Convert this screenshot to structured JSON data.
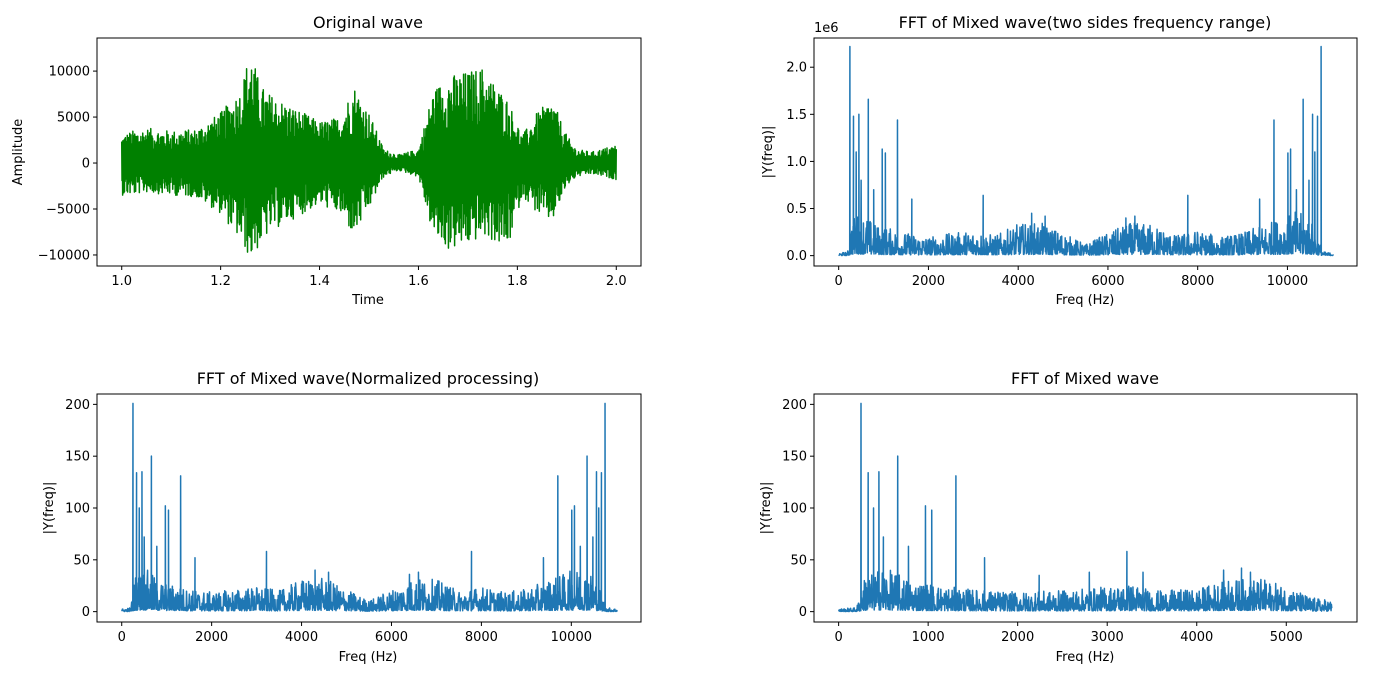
{
  "chart_data": [
    {
      "type": "line",
      "title": "Original wave",
      "xlabel": "Time",
      "ylabel": "Amplitude",
      "xlim": [
        0.95,
        2.05
      ],
      "ylim": [
        -11200,
        13600
      ],
      "xticks": [
        1.0,
        1.2,
        1.4,
        1.6,
        1.8,
        2.0
      ],
      "xticklabels": [
        "1.0",
        "1.2",
        "1.4",
        "1.6",
        "1.8",
        "2.0"
      ],
      "yticks": [
        -10000,
        -5000,
        0,
        5000,
        10000
      ],
      "yticklabels": [
        "−10000",
        "−5000",
        "0",
        "5000",
        "10000"
      ],
      "color": "#008000",
      "envelope": {
        "x": [
          1.0,
          1.02,
          1.05,
          1.1,
          1.15,
          1.2,
          1.24,
          1.26,
          1.28,
          1.3,
          1.35,
          1.4,
          1.44,
          1.47,
          1.5,
          1.53,
          1.56,
          1.6,
          1.63,
          1.66,
          1.7,
          1.73,
          1.75,
          1.78,
          1.81,
          1.84,
          1.87,
          1.9,
          1.92,
          1.95,
          2.0
        ],
        "upper": [
          3000,
          3500,
          3800,
          3500,
          3700,
          5500,
          8000,
          12500,
          8500,
          7500,
          6000,
          4500,
          5000,
          8500,
          5500,
          1500,
          900,
          1500,
          8000,
          9500,
          10000,
          10500,
          9000,
          7000,
          3000,
          5500,
          7000,
          3000,
          1500,
          1200,
          2000
        ],
        "lower": [
          -3500,
          -3500,
          -3200,
          -3500,
          -3700,
          -5500,
          -8500,
          -10500,
          -9000,
          -7500,
          -6000,
          -4500,
          -5500,
          -8000,
          -5000,
          -1500,
          -800,
          -1500,
          -8000,
          -9500,
          -9000,
          -8000,
          -8500,
          -9500,
          -3500,
          -5500,
          -6500,
          -2500,
          -1500,
          -1200,
          -1800
        ]
      }
    },
    {
      "type": "line",
      "title": "FFT of Mixed wave(two sides frequency range)",
      "xlabel": "Freq (Hz)",
      "ylabel": "|Y(freq)|",
      "scale_label": "1e6",
      "xlim": [
        -550,
        11550
      ],
      "ylim": [
        -110000,
        2310000
      ],
      "xticks": [
        0,
        2000,
        4000,
        6000,
        8000,
        10000
      ],
      "xticklabels": [
        "0",
        "2000",
        "4000",
        "6000",
        "8000",
        "10000"
      ],
      "yticks": [
        0,
        500000,
        1000000,
        1500000,
        2000000
      ],
      "yticklabels": [
        "0.0",
        "0.5",
        "1.0",
        "1.5",
        "2.0"
      ],
      "color": "#1f77b4",
      "peaks": {
        "x": [
          250,
          330,
          390,
          450,
          500,
          660,
          780,
          970,
          1040,
          1310,
          1630,
          3220,
          4300,
          4600,
          6400,
          6600,
          7780,
          9380,
          9700,
          10010,
          10070,
          10200,
          10350,
          10480,
          10560,
          10610,
          10670,
          10750
        ],
        "y": [
          2220000,
          1480000,
          1100000,
          1500000,
          800000,
          1660000,
          700000,
          1130000,
          1090000,
          1440000,
          600000,
          640000,
          450000,
          420000,
          400000,
          420000,
          640000,
          600000,
          1440000,
          1090000,
          1130000,
          700000,
          1660000,
          800000,
          1500000,
          1100000,
          1480000,
          2220000
        ]
      },
      "baseline": {
        "x": [
          0,
          200,
          300,
          500,
          800,
          1500,
          2000,
          3000,
          3500,
          4000,
          4500,
          5000,
          5500,
          6000,
          6500,
          7000,
          7500,
          8000,
          8500,
          9000,
          9500,
          10200,
          10500,
          10800,
          11025
        ],
        "y": [
          20000,
          30000,
          300000,
          350000,
          250000,
          180000,
          150000,
          200000,
          160000,
          250000,
          260000,
          180000,
          90000,
          180000,
          260000,
          250000,
          160000,
          200000,
          150000,
          180000,
          250000,
          350000,
          300000,
          30000,
          20000
        ]
      }
    },
    {
      "type": "line",
      "title": "FFT of Mixed wave(Normalized processing)",
      "xlabel": "Freq (Hz)",
      "ylabel": "|Y(freq)|",
      "xlim": [
        -550,
        11550
      ],
      "ylim": [
        -10,
        210
      ],
      "xticks": [
        0,
        2000,
        4000,
        6000,
        8000,
        10000
      ],
      "xticklabels": [
        "0",
        "2000",
        "4000",
        "6000",
        "8000",
        "10000"
      ],
      "yticks": [
        0,
        50,
        100,
        150,
        200
      ],
      "yticklabels": [
        "0",
        "50",
        "100",
        "150",
        "200"
      ],
      "color": "#1f77b4",
      "peaks": {
        "x": [
          250,
          330,
          390,
          450,
          500,
          660,
          780,
          970,
          1040,
          1310,
          1630,
          3220,
          4300,
          4600,
          6400,
          6600,
          7780,
          9380,
          9700,
          10010,
          10070,
          10200,
          10350,
          10480,
          10560,
          10610,
          10670,
          10750
        ],
        "y": [
          201,
          134,
          100,
          135,
          72,
          150,
          63,
          102,
          98,
          131,
          52,
          58,
          40,
          38,
          36,
          38,
          58,
          52,
          131,
          98,
          102,
          63,
          150,
          72,
          135,
          100,
          134,
          201
        ]
      },
      "baseline": {
        "x": [
          0,
          200,
          300,
          500,
          800,
          1500,
          2000,
          3000,
          3500,
          4000,
          4500,
          5000,
          5500,
          6000,
          6500,
          7000,
          7500,
          8000,
          8500,
          9000,
          9500,
          10200,
          10500,
          10800,
          11025
        ],
        "y": [
          2,
          3,
          27,
          32,
          23,
          16,
          14,
          18,
          15,
          23,
          24,
          16,
          8,
          16,
          24,
          23,
          15,
          18,
          14,
          16,
          23,
          32,
          27,
          3,
          2
        ]
      }
    },
    {
      "type": "line",
      "title": "FFT of Mixed wave",
      "xlabel": "Freq (Hz)",
      "ylabel": "|Y(freq)|",
      "xlim": [
        -275,
        5790
      ],
      "ylim": [
        -10,
        210
      ],
      "xticks": [
        0,
        1000,
        2000,
        3000,
        4000,
        5000
      ],
      "xticklabels": [
        "0",
        "1000",
        "2000",
        "3000",
        "4000",
        "5000"
      ],
      "yticks": [
        0,
        50,
        100,
        150,
        200
      ],
      "yticklabels": [
        "0",
        "50",
        "100",
        "150",
        "200"
      ],
      "color": "#1f77b4",
      "peaks": {
        "x": [
          250,
          330,
          390,
          450,
          500,
          660,
          780,
          970,
          1040,
          1310,
          1630,
          2240,
          2800,
          3220,
          3400,
          4300,
          4500,
          4600
        ],
        "y": [
          201,
          134,
          100,
          135,
          72,
          150,
          63,
          102,
          98,
          131,
          52,
          35,
          38,
          58,
          38,
          40,
          42,
          38
        ]
      },
      "baseline": {
        "x": [
          0,
          200,
          300,
          500,
          800,
          1200,
          1500,
          2000,
          2500,
          3000,
          3300,
          3500,
          4000,
          4300,
          4700,
          5000,
          5300,
          5512
        ],
        "y": [
          2,
          3,
          27,
          32,
          23,
          18,
          16,
          14,
          15,
          18,
          20,
          15,
          16,
          23,
          24,
          18,
          10,
          8
        ]
      }
    }
  ]
}
